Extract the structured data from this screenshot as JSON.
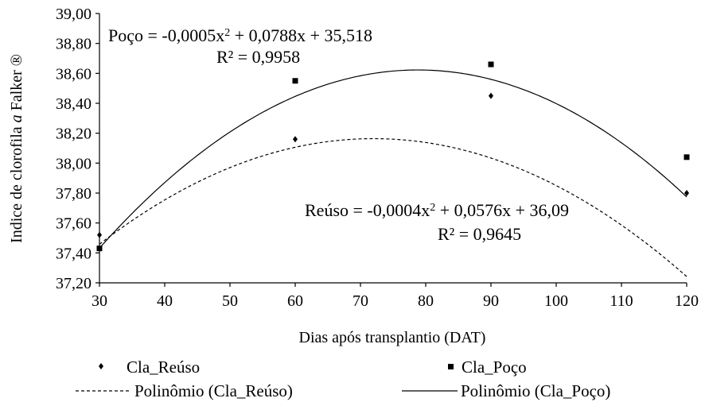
{
  "chart_data": {
    "type": "scatter",
    "xlabel": "Dias após transplantio (DAT)",
    "ylabel_prefix": "Indice de clorofila ",
    "ylabel_italic": "a",
    "ylabel_suffix": " Falker ®",
    "xlim": [
      30,
      120
    ],
    "ylim": [
      37.2,
      39.0
    ],
    "x_ticks": [
      "30",
      "40",
      "50",
      "60",
      "70",
      "80",
      "90",
      "100",
      "110",
      "120"
    ],
    "y_ticks": [
      "37,20",
      "37,40",
      "37,60",
      "37,80",
      "38,00",
      "38,20",
      "38,40",
      "38,60",
      "38,80",
      "39,00"
    ],
    "grid": false,
    "legend_position": "bottom",
    "series": [
      {
        "name": "Cla_Reúso",
        "marker": "diamond",
        "x": [
          30,
          60,
          90,
          120
        ],
        "y": [
          37.52,
          38.16,
          38.45,
          37.8
        ],
        "trend": {
          "name": "Polinômio (Cla_Reúso)",
          "style": "dashed",
          "coef": [
            -0.0004,
            0.0576,
            36.09
          ],
          "equation_prefix": "Reúso = -0,0004x",
          "equation_suffix": " + 0,0576x + 36,09",
          "r2": "R² = 0,9645"
        }
      },
      {
        "name": "Cla_Poço",
        "marker": "square",
        "x": [
          30,
          60,
          90,
          120
        ],
        "y": [
          37.43,
          38.55,
          38.66,
          38.04
        ],
        "trend": {
          "name": "Polinômio (Cla_Poço)",
          "style": "solid",
          "coef": [
            -0.0005,
            0.0788,
            35.518
          ],
          "equation_prefix": "Poço = -0,0005x",
          "equation_suffix": " + 0,0788x + 35,518",
          "r2": "R² = 0,9958"
        }
      }
    ],
    "superscript": "2"
  }
}
